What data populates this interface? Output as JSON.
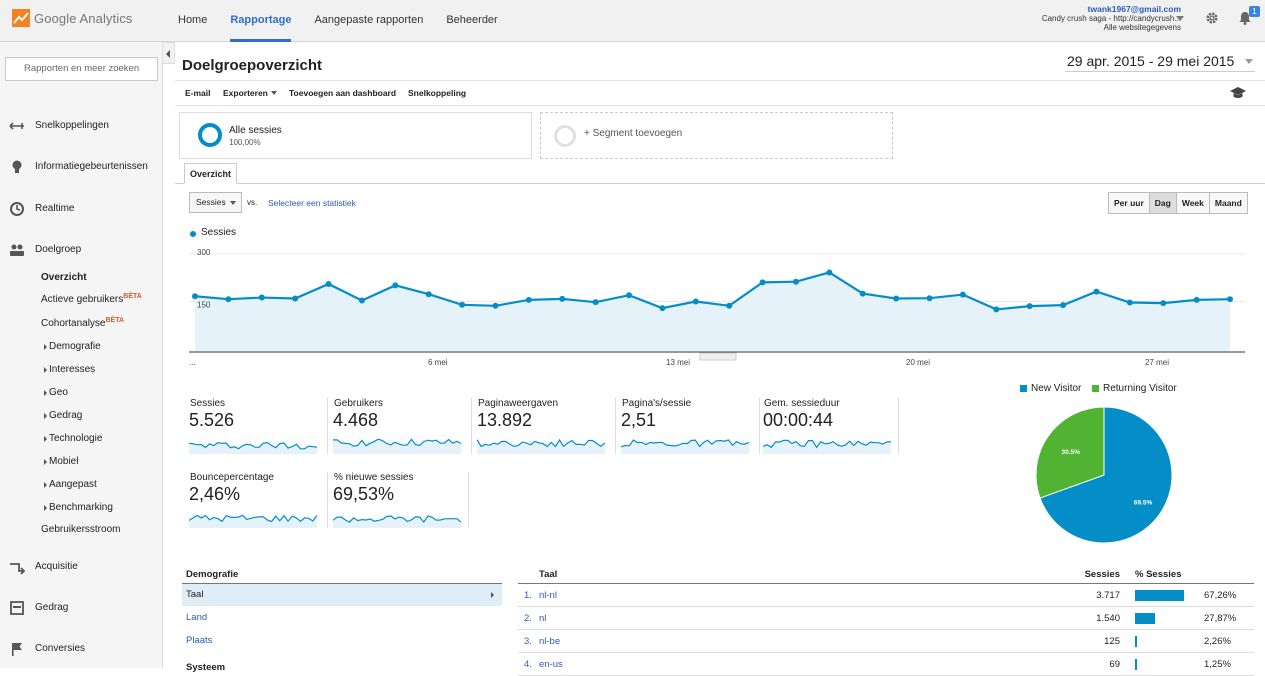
{
  "app": {
    "logo_text": "Google Analytics"
  },
  "nav": [
    {
      "label": "Home",
      "active": false
    },
    {
      "label": "Rapportage",
      "active": true
    },
    {
      "label": "Aangepaste rapporten",
      "active": false
    },
    {
      "label": "Beheerder",
      "active": false
    }
  ],
  "account": {
    "email": "twank1967@gmail.com",
    "property": "Candy crush saga - http://candycrush...",
    "view": "Alle websitegegevens",
    "notifications": "1"
  },
  "sidebar": {
    "search_placeholder": "Rapporten en meer zoeken",
    "sections": {
      "shortcuts": "Snelkoppelingen",
      "events": "Informatiegebeurtenissen",
      "realtime": "Realtime",
      "audience": "Doelgroep",
      "acquisition": "Acquisitie",
      "behavior": "Gedrag",
      "conversions": "Conversies"
    },
    "audience_items": {
      "overview": "Overzicht",
      "active_users": "Actieve gebruikers",
      "cohort": "Cohortanalyse",
      "beta": "BÈTA",
      "demographics": "Demografie",
      "interests": "Interesses",
      "geo": "Geo",
      "behavior": "Gedrag",
      "technology": "Technologie",
      "mobile": "Mobiel",
      "custom": "Aangepast",
      "benchmarking": "Benchmarking",
      "users_flow": "Gebruikersstroom"
    }
  },
  "page": {
    "title": "Doelgroepoverzicht",
    "date_range": "29 apr. 2015 - 29 mei 2015"
  },
  "toolbar": {
    "email": "E-mail",
    "export": "Exporteren",
    "add_dashboard": "Toevoegen aan dashboard",
    "shortcut": "Snelkoppeling"
  },
  "segments": {
    "all_sessions": "Alle sessies",
    "all_sessions_pct": "100,00%",
    "add_segment": "+ Segment toevoegen"
  },
  "tab": "Overzicht",
  "controls": {
    "metric": "Sessies",
    "vs": "vs.",
    "select_stat": "Selecteer een statistiek",
    "periods": [
      "Per uur",
      "Dag",
      "Week",
      "Maand"
    ],
    "active_period": "Dag"
  },
  "chart_data": {
    "type": "line",
    "series": [
      {
        "name": "Sessies",
        "values": [
          166,
          157,
          162,
          159,
          203,
          153,
          199,
          172,
          140,
          137,
          155,
          158,
          148,
          169,
          130,
          150,
          137,
          208,
          210,
          238,
          174,
          159,
          160,
          171,
          126,
          136,
          139,
          180,
          147,
          145,
          155,
          157
        ]
      }
    ],
    "x_labels": [
      "...",
      "6 mei",
      "13 mei",
      "20 mei",
      "27 mei"
    ],
    "y_ticks": [
      "300",
      "150"
    ],
    "ylim": [
      0,
      300
    ],
    "area": true,
    "color": "#058dc7"
  },
  "scorecards": [
    {
      "name": "Sessies",
      "value": "5.526"
    },
    {
      "name": "Gebruikers",
      "value": "4.468"
    },
    {
      "name": "Paginaweergaven",
      "value": "13.892"
    },
    {
      "name": "Pagina's/sessie",
      "value": "2,51"
    },
    {
      "name": "Gem. sessieduur",
      "value": "00:00:44"
    },
    {
      "name": "Bouncepercentage",
      "value": "2,46%"
    },
    {
      "name": "% nieuwe sessies",
      "value": "69,53%"
    }
  ],
  "pie": {
    "type": "pie",
    "slices": [
      {
        "name": "New Visitor",
        "value": 69.5,
        "label": "69.5%",
        "color": "#058dc7"
      },
      {
        "name": "Returning Visitor",
        "value": 30.5,
        "label": "30.5%",
        "color": "#50b432"
      }
    ]
  },
  "demographics": {
    "header": "Demografie",
    "rows": [
      "Taal",
      "Land",
      "Plaats"
    ],
    "selected": "Taal",
    "next_header": "Systeem"
  },
  "language_table": {
    "headers": {
      "dimension": "Taal",
      "sessions": "Sessies",
      "pct": "% Sessies"
    },
    "rows": [
      {
        "idx": "1.",
        "lang": "nl-nl",
        "sessions": "3.717",
        "pct": "67,26%",
        "share": 67.26
      },
      {
        "idx": "2.",
        "lang": "nl",
        "sessions": "1.540",
        "pct": "27,87%",
        "share": 27.87
      },
      {
        "idx": "3.",
        "lang": "nl-be",
        "sessions": "125",
        "pct": "2,26%",
        "share": 2.26
      },
      {
        "idx": "4.",
        "lang": "en-us",
        "sessions": "69",
        "pct": "1,25%",
        "share": 1.25
      }
    ]
  }
}
